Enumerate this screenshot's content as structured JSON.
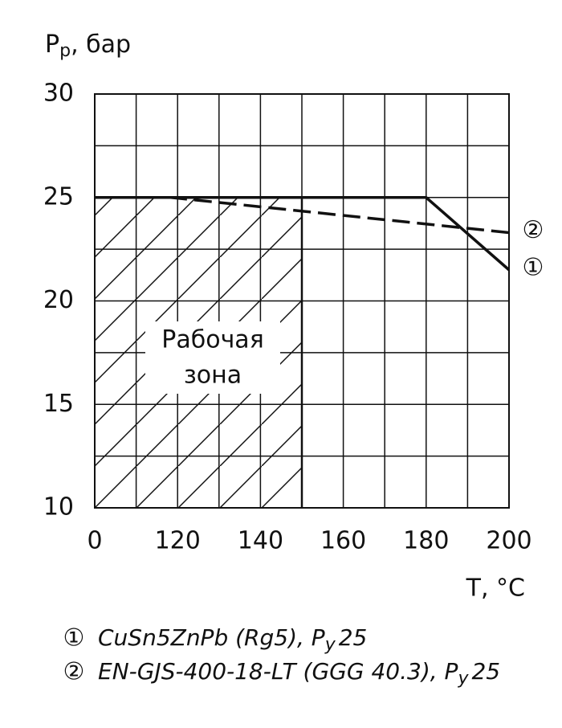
{
  "chart_data": {
    "type": "line",
    "ylabel": "P",
    "ylabel_sub": "p",
    "ylabel_suffix": ", бар",
    "xlabel": "T, °C",
    "xticks": [
      0,
      120,
      140,
      160,
      180,
      200
    ],
    "xminorticks": [
      60,
      130,
      150,
      170,
      190
    ],
    "ylim": [
      10,
      30
    ],
    "yticks": [
      10,
      15,
      20,
      25,
      30
    ],
    "yminorticks": [
      12.5,
      17.5,
      22.5,
      27.5
    ],
    "grid": true,
    "zone": {
      "label": [
        "Рабочая",
        "зона"
      ],
      "x": [
        0,
        150
      ],
      "y": [
        10,
        25
      ]
    },
    "series": [
      {
        "marker": "②",
        "name": "EN-GJS-400-18-LT (GGG 40.3), P",
        "name_sub": "y",
        "name_suffix": "25",
        "color": "#111111",
        "dash": true,
        "x": [
          0,
          110,
          200
        ],
        "values": [
          25,
          25,
          23.3
        ]
      },
      {
        "marker": "①",
        "name": "CuSn5ZnPb (Rg5), P",
        "name_sub": "y",
        "name_suffix": "25",
        "color": "#111111",
        "dash": false,
        "x": [
          0,
          180,
          200
        ],
        "values": [
          25,
          25,
          21.5
        ]
      }
    ]
  }
}
